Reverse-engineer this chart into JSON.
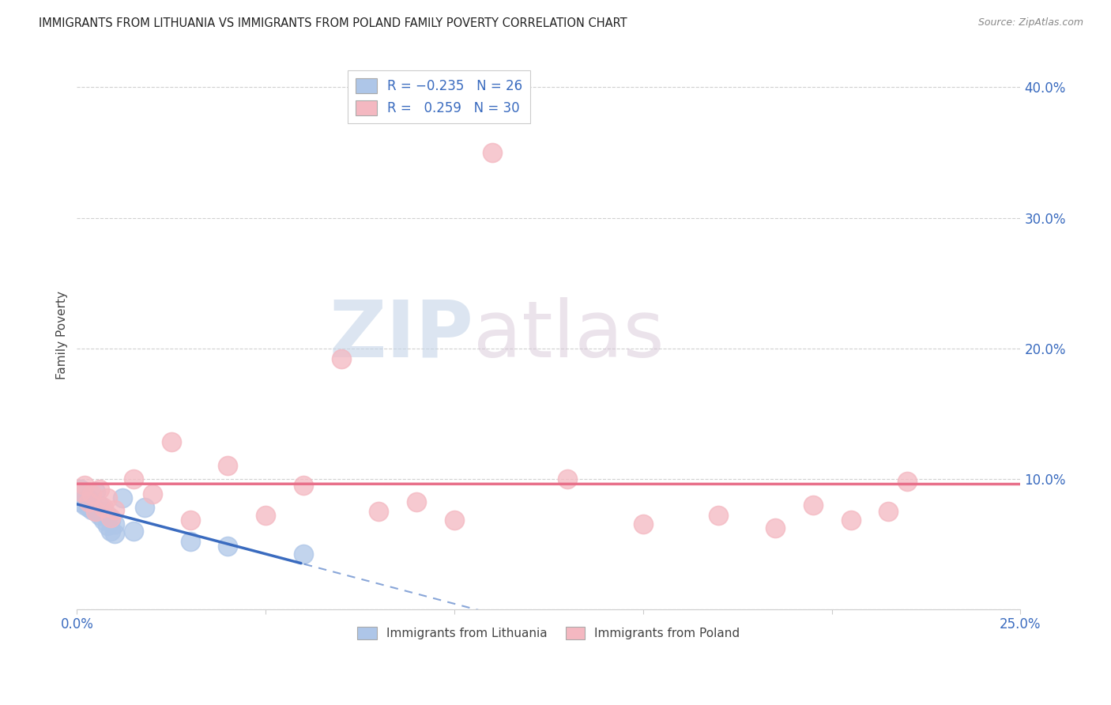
{
  "title": "IMMIGRANTS FROM LITHUANIA VS IMMIGRANTS FROM POLAND FAMILY POVERTY CORRELATION CHART",
  "source": "Source: ZipAtlas.com",
  "ylabel": "Family Poverty",
  "xlim": [
    0.0,
    0.25
  ],
  "ylim": [
    0.0,
    0.42
  ],
  "xticks": [
    0.0,
    0.05,
    0.1,
    0.15,
    0.2,
    0.25
  ],
  "yticks": [
    0.0,
    0.1,
    0.2,
    0.3,
    0.4
  ],
  "legend_labels": [
    "Immigrants from Lithuania",
    "Immigrants from Poland"
  ],
  "legend_R": [
    -0.235,
    0.259
  ],
  "legend_N": [
    26,
    30
  ],
  "lithuania_color": "#aec6e8",
  "poland_color": "#f4b8c1",
  "lithuania_line_color": "#3a6bbf",
  "poland_line_color": "#e8708a",
  "watermark_zip": "ZIP",
  "watermark_atlas": "atlas",
  "lithuania_x": [
    0.001,
    0.001,
    0.002,
    0.002,
    0.003,
    0.003,
    0.004,
    0.004,
    0.005,
    0.005,
    0.006,
    0.006,
    0.007,
    0.007,
    0.008,
    0.008,
    0.009,
    0.009,
    0.01,
    0.01,
    0.012,
    0.015,
    0.018,
    0.03,
    0.04,
    0.06
  ],
  "lithuania_y": [
    0.082,
    0.092,
    0.08,
    0.088,
    0.078,
    0.085,
    0.076,
    0.082,
    0.075,
    0.09,
    0.072,
    0.08,
    0.068,
    0.075,
    0.064,
    0.072,
    0.06,
    0.068,
    0.058,
    0.065,
    0.085,
    0.06,
    0.078,
    0.052,
    0.048,
    0.042
  ],
  "poland_x": [
    0.001,
    0.002,
    0.003,
    0.004,
    0.005,
    0.006,
    0.007,
    0.008,
    0.009,
    0.01,
    0.015,
    0.02,
    0.025,
    0.03,
    0.04,
    0.05,
    0.06,
    0.07,
    0.08,
    0.09,
    0.1,
    0.11,
    0.13,
    0.15,
    0.17,
    0.185,
    0.195,
    0.205,
    0.215,
    0.22
  ],
  "poland_y": [
    0.09,
    0.095,
    0.082,
    0.088,
    0.075,
    0.092,
    0.078,
    0.085,
    0.07,
    0.076,
    0.1,
    0.088,
    0.128,
    0.068,
    0.11,
    0.072,
    0.095,
    0.192,
    0.075,
    0.082,
    0.068,
    0.35,
    0.1,
    0.065,
    0.072,
    0.062,
    0.08,
    0.068,
    0.075,
    0.098
  ]
}
